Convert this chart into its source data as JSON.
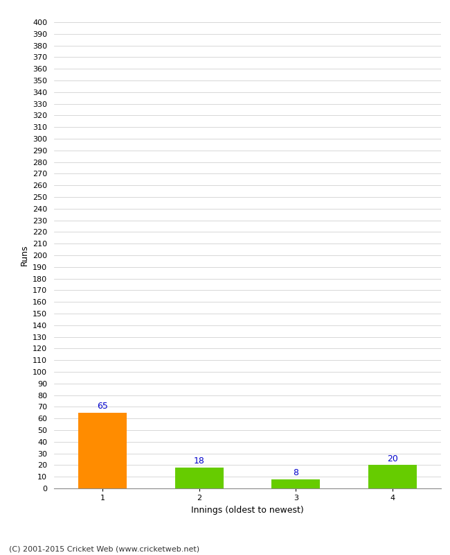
{
  "categories": [
    "1",
    "2",
    "3",
    "4"
  ],
  "values": [
    65,
    18,
    8,
    20
  ],
  "bar_colors": [
    "#ff8c00",
    "#66cc00",
    "#66cc00",
    "#66cc00"
  ],
  "xlabel": "Innings (oldest to newest)",
  "ylabel": "Runs",
  "ylim": [
    0,
    400
  ],
  "yticks": [
    0,
    10,
    20,
    30,
    40,
    50,
    60,
    70,
    80,
    90,
    100,
    110,
    120,
    130,
    140,
    150,
    160,
    170,
    180,
    190,
    200,
    210,
    220,
    230,
    240,
    250,
    260,
    270,
    280,
    290,
    300,
    310,
    320,
    330,
    340,
    350,
    360,
    370,
    380,
    390,
    400
  ],
  "label_color": "#0000cc",
  "background_color": "#ffffff",
  "grid_color": "#c8c8c8",
  "footer": "(C) 2001-2015 Cricket Web (www.cricketweb.net)",
  "bar_width": 0.5,
  "tick_fontsize": 8,
  "label_fontsize": 9,
  "footer_fontsize": 8
}
